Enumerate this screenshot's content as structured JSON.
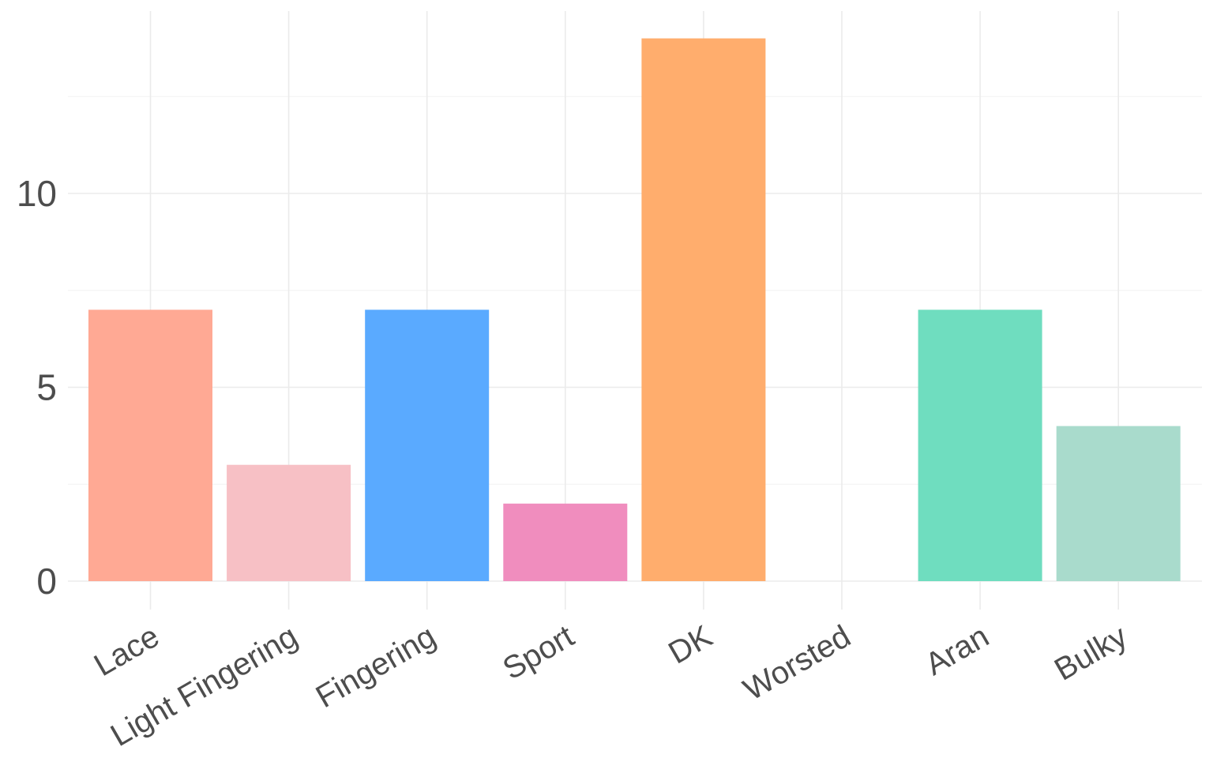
{
  "chart_data": {
    "type": "bar",
    "title": "",
    "xlabel": "",
    "ylabel": "",
    "categories": [
      "Lace",
      "Light Fingering",
      "Fingering",
      "Sport",
      "DK",
      "Worsted",
      "Aran",
      "Bulky"
    ],
    "values": [
      7,
      3,
      7,
      2,
      14,
      0,
      7,
      4
    ],
    "colors": [
      "#FFA994",
      "#F7C0C5",
      "#5AAAFF",
      "#F08DBE",
      "#FFAD6D",
      "#FFFFFF",
      "#6FDDBF",
      "#A9DBCC"
    ],
    "ylim": [
      0,
      14.7
    ],
    "yticks": [
      0,
      5,
      10
    ],
    "yticklabels": [
      "0",
      "5",
      "10"
    ],
    "grid": true,
    "legend": "none",
    "xtick_rotation": -30
  }
}
